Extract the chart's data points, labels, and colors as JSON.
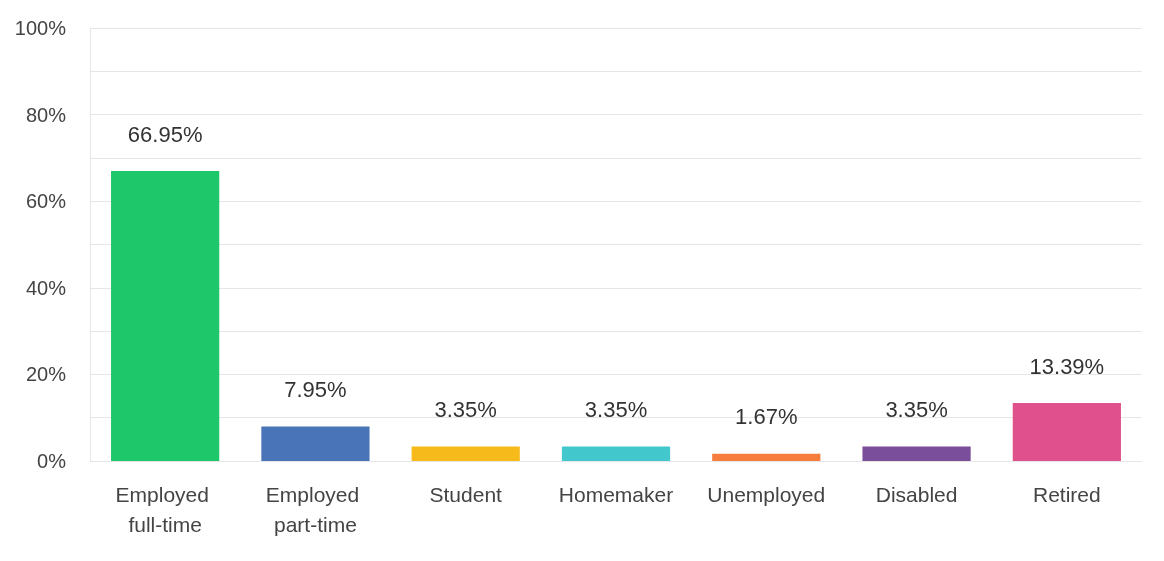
{
  "chart_data": {
    "type": "bar",
    "categories": [
      "Employed full-time",
      "Employed part-time",
      "Student",
      "Homemaker",
      "Unemployed",
      "Disabled",
      "Retired"
    ],
    "values": [
      66.95,
      7.95,
      3.35,
      3.35,
      1.67,
      3.35,
      13.39
    ],
    "colors": [
      "#1ec769",
      "#4a74b8",
      "#f6bb1b",
      "#41c7cc",
      "#f67d3b",
      "#7b4e9c",
      "#e0508c"
    ],
    "value_labels": [
      "66.95%",
      "7.95%",
      "3.35%",
      "3.35%",
      "1.67%",
      "3.35%",
      "13.39%"
    ],
    "ylim": [
      0,
      100
    ],
    "yticks": [
      {
        "value": 0,
        "label": "0%"
      },
      {
        "value": 10,
        "label": null
      },
      {
        "value": 20,
        "label": "20%"
      },
      {
        "value": 30,
        "label": null
      },
      {
        "value": 40,
        "label": "40%"
      },
      {
        "value": 50,
        "label": null
      },
      {
        "value": 60,
        "label": "60%"
      },
      {
        "value": 70,
        "label": null
      },
      {
        "value": 80,
        "label": "80%"
      },
      {
        "value": 90,
        "label": null
      },
      {
        "value": 100,
        "label": "100%"
      }
    ],
    "grid": "y"
  }
}
